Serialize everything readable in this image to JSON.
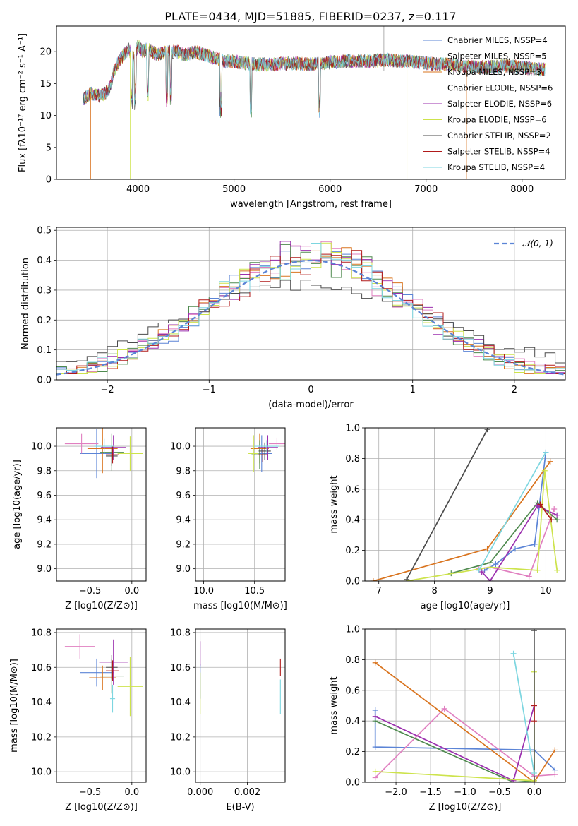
{
  "title": "PLATE=0434, MJD=51885, FIBERID=0237, z=0.117",
  "colors": {
    "chabrier_miles": "#5b84d6",
    "salpeter_miles": "#e07fc0",
    "kroupa_miles": "#d9741f",
    "chabrier_elodie": "#4f8a4f",
    "salpeter_elodie": "#9b2fae",
    "kroupa_elodie": "#cde34c",
    "chabrier_stelib": "#4b4b4b",
    "salpeter_stelib": "#b11a1a",
    "kroupa_stelib": "#7dd6e0",
    "normal": "#5b84d6"
  },
  "chart_data": [
    {
      "type": "line",
      "xlabel": "wavelength [Angstrom, rest frame]",
      "ylabel": "Flux [fλ10⁻¹⁷ erg cm⁻² s⁻¹ A⁻¹]",
      "xlim": [
        3150,
        8450
      ],
      "ylim": [
        0,
        24
      ],
      "xticks": [
        4000,
        5000,
        6000,
        7000,
        8000
      ],
      "yticks": [
        0,
        5,
        10,
        15,
        20
      ],
      "legend_placement": "top-right",
      "series": [
        {
          "name": "Chabrier MILES, N_SSP=4",
          "color_key": "chabrier_miles"
        },
        {
          "name": "Salpeter MILES, N_SSP=5",
          "color_key": "salpeter_miles"
        },
        {
          "name": "Kroupa MILES, N_SSP=3",
          "color_key": "kroupa_miles"
        },
        {
          "name": "Chabrier ELODIE, N_SSP=6",
          "color_key": "chabrier_elodie"
        },
        {
          "name": "Salpeter ELODIE, N_SSP=6",
          "color_key": "salpeter_elodie"
        },
        {
          "name": "Kroupa ELODIE, N_SSP=6",
          "color_key": "kroupa_elodie"
        },
        {
          "name": "Chabrier STELIB, N_SSP=2",
          "color_key": "chabrier_stelib"
        },
        {
          "name": "Salpeter STELIB, N_SSP=4",
          "color_key": "salpeter_stelib"
        },
        {
          "name": "Kroupa STELIB, N_SSP=4",
          "color_key": "kroupa_stelib"
        }
      ],
      "spectrum_x": [
        3430,
        3500,
        3600,
        3700,
        3750,
        3800,
        3850,
        3900,
        3950,
        4000,
        4050,
        4100,
        4200,
        4300,
        4400,
        4500,
        4600,
        4700,
        4800,
        4900,
        5000,
        5200,
        5400,
        5600,
        5800,
        6000,
        6200,
        6400,
        6600,
        6800,
        7000,
        7200,
        7400,
        7600,
        7800,
        8000,
        8200
      ],
      "spectrum_y": [
        12.5,
        13.5,
        13.0,
        14.0,
        17.0,
        18.5,
        19.5,
        20.5,
        19.0,
        21.0,
        20.0,
        20.5,
        19.5,
        20.0,
        20.0,
        19.5,
        20.0,
        19.5,
        19.0,
        18.5,
        18.5,
        18.0,
        18.0,
        18.2,
        18.0,
        18.3,
        18.5,
        18.5,
        18.7,
        18.5,
        18.2,
        18.0,
        17.8,
        17.5,
        17.8,
        17.5,
        17.2
      ]
    },
    {
      "type": "step",
      "xlabel": "(data-model)/error",
      "ylabel": "Normed distribution",
      "xlim": [
        -2.5,
        2.5
      ],
      "ylim": [
        0,
        0.51
      ],
      "xticks": [
        -2,
        -1,
        0,
        1,
        2
      ],
      "yticks": [
        0.0,
        0.1,
        0.2,
        0.3,
        0.4,
        0.5
      ],
      "legend_placement": "top-right",
      "legend": "𝒩(0, 1)",
      "bin_width": 0.1
    },
    {
      "type": "scatter",
      "xlabel": "Z [log10(Z/Z⊙)]",
      "ylabel": "age  [log10(age/yr)]",
      "xlim": [
        -0.9,
        0.17
      ],
      "ylim": [
        8.9,
        10.15
      ],
      "xticks": [
        -0.5,
        0.0
      ],
      "yticks": [
        9.0,
        9.2,
        9.4,
        9.6,
        9.8,
        10.0
      ],
      "points": [
        {
          "x": -0.42,
          "y": 9.94,
          "dx": 0.2,
          "dy": 0.2,
          "color_key": "chabrier_miles"
        },
        {
          "x": -0.6,
          "y": 10.02,
          "dx": 0.2,
          "dy": 0.08,
          "color_key": "salpeter_miles"
        },
        {
          "x": -0.35,
          "y": 9.98,
          "dx": 0.18,
          "dy": 0.2,
          "color_key": "kroupa_miles"
        },
        {
          "x": -0.24,
          "y": 9.95,
          "dx": 0.14,
          "dy": 0.15,
          "color_key": "chabrier_elodie"
        },
        {
          "x": -0.22,
          "y": 9.99,
          "dx": 0.15,
          "dy": 0.1,
          "color_key": "salpeter_elodie"
        },
        {
          "x": -0.02,
          "y": 9.94,
          "dx": 0.15,
          "dy": 0.14,
          "color_key": "kroupa_elodie"
        },
        {
          "x": -0.24,
          "y": 9.92,
          "dx": 0.07,
          "dy": 0.08,
          "color_key": "chabrier_stelib"
        },
        {
          "x": -0.23,
          "y": 9.93,
          "dx": 0.08,
          "dy": 0.07,
          "color_key": "salpeter_stelib"
        },
        {
          "x": -0.33,
          "y": 10.0,
          "dx": 0.12,
          "dy": 0.06,
          "color_key": "kroupa_stelib"
        }
      ]
    },
    {
      "type": "scatter",
      "xlabel": "mass [log10(M/M⊙)]",
      "ylabel": "",
      "xlim": [
        9.92,
        10.8
      ],
      "ylim": [
        8.9,
        10.15
      ],
      "xticks": [
        10.0,
        10.5
      ],
      "yticks": [
        9.0,
        9.2,
        9.4,
        9.6,
        9.8,
        10.0
      ],
      "points": [
        {
          "x": 10.57,
          "y": 9.94,
          "dx": 0.1,
          "dy": 0.15,
          "color_key": "chabrier_miles"
        },
        {
          "x": 10.72,
          "y": 10.02,
          "dx": 0.08,
          "dy": 0.05,
          "color_key": "salpeter_miles"
        },
        {
          "x": 10.55,
          "y": 9.98,
          "dx": 0.09,
          "dy": 0.12,
          "color_key": "kroupa_miles"
        },
        {
          "x": 10.55,
          "y": 9.93,
          "dx": 0.08,
          "dy": 0.12,
          "color_key": "chabrier_elodie"
        },
        {
          "x": 10.63,
          "y": 9.99,
          "dx": 0.1,
          "dy": 0.1,
          "color_key": "salpeter_elodie"
        },
        {
          "x": 10.49,
          "y": 9.94,
          "dx": 0.05,
          "dy": 0.15,
          "color_key": "kroupa_elodie"
        },
        {
          "x": 10.6,
          "y": 9.96,
          "dx": 0.06,
          "dy": 0.07,
          "color_key": "chabrier_stelib"
        },
        {
          "x": 10.58,
          "y": 9.93,
          "dx": 0.05,
          "dy": 0.06,
          "color_key": "salpeter_stelib"
        },
        {
          "x": 10.62,
          "y": 10.0,
          "dx": 0.12,
          "dy": 0.05,
          "color_key": "kroupa_stelib"
        }
      ]
    },
    {
      "type": "line",
      "xlabel": "age  [log10(age/yr)]",
      "ylabel": "mass weight",
      "xlim": [
        6.75,
        10.35
      ],
      "ylim": [
        0,
        1.0
      ],
      "xticks": [
        7,
        8,
        9,
        10
      ],
      "yticks": [
        0.0,
        0.2,
        0.4,
        0.6,
        0.8,
        1.0
      ],
      "series": [
        {
          "color_key": "chabrier_miles",
          "x": [
            8.9,
            9.1,
            9.45,
            9.8,
            10.0
          ],
          "y": [
            0.07,
            0.11,
            0.21,
            0.24,
            0.84
          ]
        },
        {
          "color_key": "salpeter_miles",
          "x": [
            8.8,
            9.0,
            9.7,
            10.15
          ],
          "y": [
            0.08,
            0.09,
            0.03,
            0.47
          ]
        },
        {
          "color_key": "kroupa_miles",
          "x": [
            6.9,
            8.95,
            10.08
          ],
          "y": [
            0.0,
            0.21,
            0.78
          ]
        },
        {
          "color_key": "chabrier_elodie",
          "x": [
            8.3,
            9.0,
            9.85,
            10.2
          ],
          "y": [
            0.05,
            0.12,
            0.51,
            0.4
          ]
        },
        {
          "color_key": "salpeter_elodie",
          "x": [
            8.85,
            9.0,
            9.85,
            10.2
          ],
          "y": [
            0.06,
            0.0,
            0.49,
            0.43
          ]
        },
        {
          "color_key": "kroupa_elodie",
          "x": [
            7.5,
            9.0,
            9.85,
            9.98,
            10.2
          ],
          "y": [
            0.0,
            0.09,
            0.07,
            0.72,
            0.07
          ]
        },
        {
          "color_key": "chabrier_stelib",
          "x": [
            7.5,
            8.95
          ],
          "y": [
            0.01,
            0.99
          ]
        },
        {
          "color_key": "salpeter_stelib",
          "x": [
            9.9,
            10.1
          ],
          "y": [
            0.5,
            0.4
          ]
        },
        {
          "color_key": "kroupa_stelib",
          "x": [
            8.8,
            10.0
          ],
          "y": [
            0.07,
            0.84
          ]
        }
      ]
    },
    {
      "type": "scatter",
      "xlabel": "Z [log10(Z/Z⊙)]",
      "ylabel": "mass [log10(M/M⊙)]",
      "xlim": [
        -0.9,
        0.17
      ],
      "ylim": [
        9.94,
        10.82
      ],
      "xticks": [
        -0.5,
        0.0
      ],
      "yticks": [
        10.0,
        10.2,
        10.4,
        10.6,
        10.8
      ],
      "points": [
        {
          "x": -0.42,
          "y": 10.57,
          "dx": 0.2,
          "dy": 0.08,
          "color_key": "chabrier_miles"
        },
        {
          "x": -0.62,
          "y": 10.72,
          "dx": 0.18,
          "dy": 0.07,
          "color_key": "salpeter_miles"
        },
        {
          "x": -0.35,
          "y": 10.54,
          "dx": 0.16,
          "dy": 0.07,
          "color_key": "kroupa_miles"
        },
        {
          "x": -0.24,
          "y": 10.55,
          "dx": 0.14,
          "dy": 0.1,
          "color_key": "chabrier_elodie"
        },
        {
          "x": -0.22,
          "y": 10.63,
          "dx": 0.17,
          "dy": 0.13,
          "color_key": "salpeter_elodie"
        },
        {
          "x": -0.02,
          "y": 10.49,
          "dx": 0.15,
          "dy": 0.17,
          "color_key": "kroupa_elodie"
        },
        {
          "x": -0.24,
          "y": 10.6,
          "dx": 0.07,
          "dy": 0.07,
          "color_key": "chabrier_stelib"
        },
        {
          "x": -0.23,
          "y": 10.58,
          "dx": 0.08,
          "dy": 0.06,
          "color_key": "salpeter_stelib"
        },
        {
          "x": -0.23,
          "y": 10.42,
          "dx": 0.03,
          "dy": 0.08,
          "color_key": "kroupa_stelib"
        }
      ]
    },
    {
      "type": "scatter",
      "xlabel": "E(B-V)",
      "ylabel": "",
      "xlim": [
        -0.0002,
        0.0036
      ],
      "ylim": [
        9.94,
        10.82
      ],
      "xticks": [
        0.0,
        0.002
      ],
      "yticks": [
        10.0,
        10.2,
        10.4,
        10.6,
        10.8
      ],
      "points": [
        {
          "x": 0.0,
          "y": 10.52,
          "dx": 0.0,
          "dy": 0.1,
          "color_key": "chabrier_miles"
        },
        {
          "x": 0.0,
          "y": 10.68,
          "dx": 0.0,
          "dy": 0.07,
          "color_key": "salpeter_elodie"
        },
        {
          "x": 0.0,
          "y": 10.45,
          "dx": 0.0,
          "dy": 0.12,
          "color_key": "kroupa_elodie"
        },
        {
          "x": 0.0034,
          "y": 10.6,
          "dx": 0.0,
          "dy": 0.05,
          "color_key": "salpeter_stelib"
        },
        {
          "x": 0.0034,
          "y": 10.43,
          "dx": 0.0,
          "dy": 0.1,
          "color_key": "kroupa_stelib"
        }
      ]
    },
    {
      "type": "line",
      "xlabel": "Z [log10(Z/Z⊙)]",
      "ylabel": "mass weight",
      "xlim": [
        -2.45,
        0.45
      ],
      "ylim": [
        0,
        1.0
      ],
      "xticks": [
        -2.0,
        -1.5,
        -1.0,
        -0.5,
        0.0
      ],
      "yticks": [
        0.0,
        0.2,
        0.4,
        0.6,
        0.8,
        1.0
      ],
      "series": [
        {
          "color_key": "chabrier_miles",
          "x": [
            -2.3,
            -2.3,
            0.0,
            0.3
          ],
          "y": [
            0.47,
            0.23,
            0.21,
            0.08
          ]
        },
        {
          "color_key": "salpeter_miles",
          "x": [
            -2.3,
            -1.3,
            0.0,
            0.3
          ],
          "y": [
            0.03,
            0.48,
            0.04,
            0.05
          ]
        },
        {
          "color_key": "kroupa_miles",
          "x": [
            -2.3,
            0.0,
            0.3
          ],
          "y": [
            0.78,
            0.0,
            0.21
          ]
        },
        {
          "color_key": "chabrier_elodie",
          "x": [
            -2.3,
            -0.3,
            0.0
          ],
          "y": [
            0.4,
            0.0,
            0.01
          ]
        },
        {
          "color_key": "salpeter_elodie",
          "x": [
            -2.3,
            -0.3,
            0.0
          ],
          "y": [
            0.43,
            0.01,
            0.5
          ]
        },
        {
          "color_key": "kroupa_elodie",
          "x": [
            -2.3,
            0.0,
            0.0
          ],
          "y": [
            0.07,
            0.01,
            0.72
          ]
        },
        {
          "color_key": "chabrier_stelib",
          "x": [
            0.0,
            0.0
          ],
          "y": [
            0.99,
            0.0
          ]
        },
        {
          "color_key": "salpeter_stelib",
          "x": [
            0.0,
            0.0
          ],
          "y": [
            0.5,
            0.4
          ]
        },
        {
          "color_key": "kroupa_stelib",
          "x": [
            -0.3,
            0.0
          ],
          "y": [
            0.84,
            0.06
          ]
        }
      ]
    }
  ]
}
